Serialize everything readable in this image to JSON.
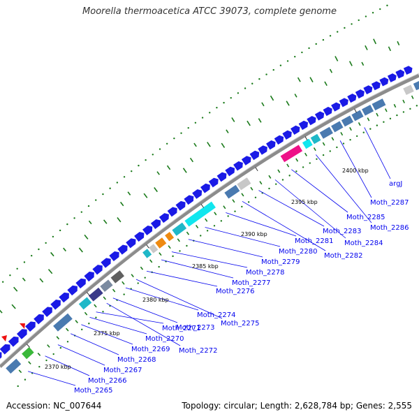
{
  "title": "Moorella thermoacetica ATCC 39073, complete genome",
  "footer": {
    "accession": "Accession: NC_007644",
    "summary": "Topology: circular; Length: 2,628,784 bp; Genes: 2,555"
  },
  "colors": {
    "backbone": "#8c8c8c",
    "forward_gene": "#1a1ae6",
    "reverse_gene": "#4a7ab0",
    "label": "#0000ee",
    "tick": "#1a7a1a"
  },
  "scale_labels": [
    "2370 kbp",
    "2375 kbp",
    "2380 kbp",
    "2385 kbp",
    "2390 kbp",
    "2395 kbp",
    "2400 kbp"
  ],
  "gene_labels": [
    "Moth_2265",
    "Moth_2266",
    "Moth_2267",
    "Moth_2268",
    "Moth_2269",
    "Moth_2270",
    "Moth_2271",
    "Moth_2272",
    "Moth_2273",
    "Moth_2274",
    "Moth_2275",
    "Moth_2276",
    "Moth_2277",
    "Moth_2278",
    "Moth_2279",
    "Moth_2280",
    "Moth_2281",
    "Moth_2282",
    "Moth_2283",
    "Moth_2284",
    "Moth_2285",
    "Moth_2286",
    "Moth_2287",
    "argJ"
  ]
}
